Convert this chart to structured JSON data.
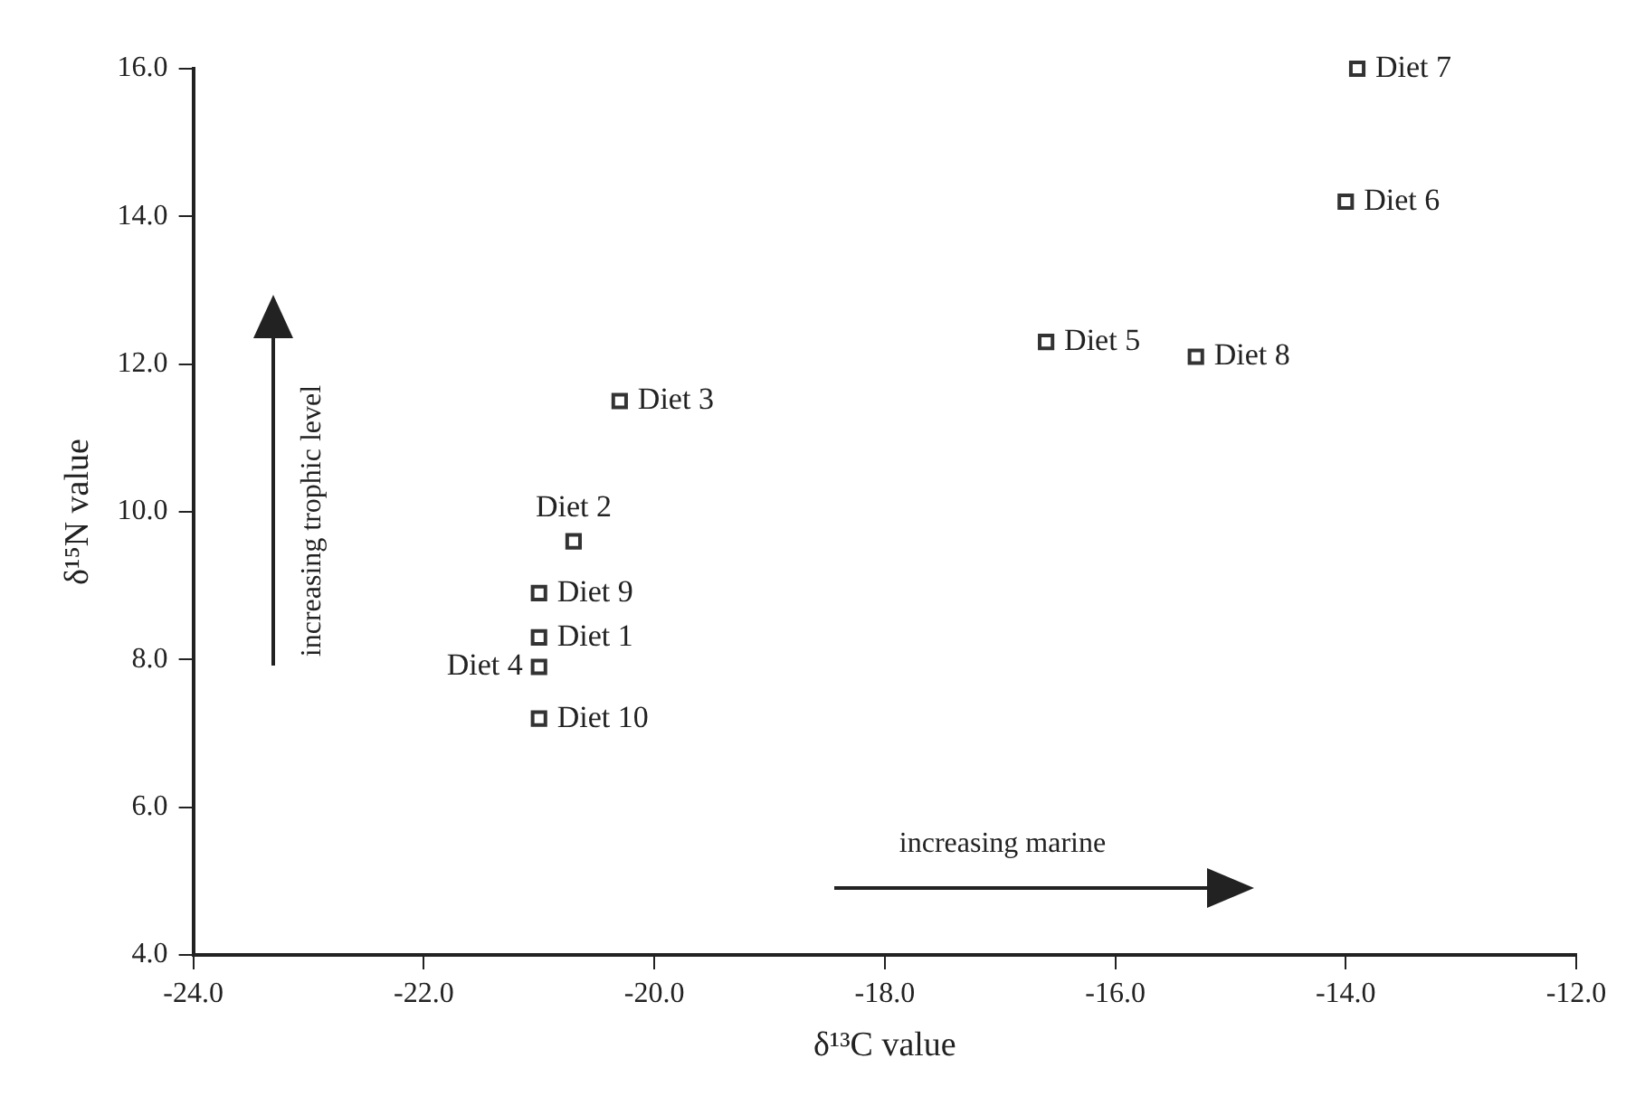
{
  "chart_data": {
    "type": "scatter",
    "xlabel": "δ¹³C value",
    "ylabel": "δ¹⁵N value",
    "xlim": [
      -24,
      -12
    ],
    "xticks": [
      {
        "value": -24,
        "label": "-24.0"
      },
      {
        "value": -22,
        "label": "-22.0"
      },
      {
        "value": -20,
        "label": "-20.0"
      },
      {
        "value": -18,
        "label": "-18.0"
      },
      {
        "value": -16,
        "label": "-16.0"
      },
      {
        "value": -14,
        "label": "-14.0"
      },
      {
        "value": -12,
        "label": "-12.0"
      }
    ],
    "ylim": [
      4,
      16
    ],
    "yticks": [
      {
        "value": 4,
        "label": "4.0"
      },
      {
        "value": 6,
        "label": "6.0"
      },
      {
        "value": 8,
        "label": "8.0"
      },
      {
        "value": 10,
        "label": "10.0"
      },
      {
        "value": 12,
        "label": "12.0"
      },
      {
        "value": 14,
        "label": "14.0"
      },
      {
        "value": 16,
        "label": "16.0"
      }
    ],
    "grid": false,
    "legend": false,
    "marker": "square",
    "series": [
      {
        "color": "#333333",
        "x": [
          -21.0,
          -20.7,
          -20.3,
          -21.0,
          -16.6,
          -14.0,
          -13.9,
          -15.3,
          -21.0,
          -21.0
        ],
        "values": [
          8.3,
          9.6,
          11.5,
          7.9,
          12.3,
          14.2,
          16.0,
          12.1,
          8.9,
          7.2
        ],
        "value_labels": [
          "Diet 1",
          "Diet 2",
          "Diet 3",
          "Diet 4",
          "Diet 5",
          "Diet 6",
          "Diet 7",
          "Diet 8",
          "Diet 9",
          "Diet 10"
        ]
      }
    ],
    "annotations": [
      "increasing trophic level",
      "increasing marine"
    ]
  }
}
